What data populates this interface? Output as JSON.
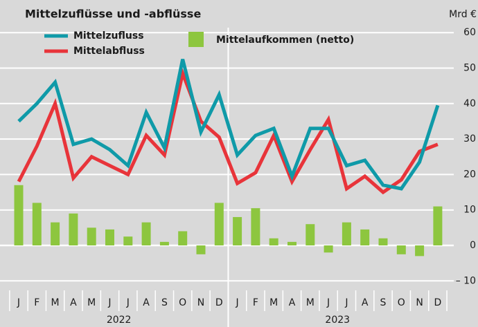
{
  "chart_data": {
    "type": "combo",
    "title": "Mittelzuflüsse und -abflüsse",
    "y_unit": "Mrd €",
    "categories": [
      "J",
      "F",
      "M",
      "A",
      "M",
      "J",
      "J",
      "A",
      "S",
      "O",
      "N",
      "D",
      "J",
      "F",
      "M",
      "A",
      "M",
      "J",
      "J",
      "A",
      "S",
      "O",
      "N",
      "D"
    ],
    "years": [
      "2022",
      "2023"
    ],
    "series": [
      {
        "name": "Mittelzufluss",
        "kind": "line",
        "color": "#0f9aa8",
        "values": [
          35,
          40,
          46,
          28.5,
          30,
          27,
          22.5,
          37.5,
          27.5,
          52.5,
          32,
          42.5,
          25.5,
          31,
          33,
          19.5,
          33,
          33,
          22.5,
          24,
          17,
          16,
          23.5,
          39.5
        ]
      },
      {
        "name": "Mittelabfluss",
        "kind": "line",
        "color": "#e8343a",
        "values": [
          18,
          28,
          40,
          19,
          25,
          22.5,
          20,
          31,
          25.5,
          48.5,
          35,
          30.5,
          17.5,
          20.5,
          31,
          18,
          27,
          35.5,
          16,
          19.5,
          15,
          18.5,
          26.5,
          28.5
        ]
      },
      {
        "name": "Mittelaufkommen (netto)",
        "kind": "bar",
        "color": "#8dc63f",
        "values": [
          17,
          12,
          6.5,
          9,
          5,
          4.5,
          2.5,
          6.5,
          1,
          4,
          -2.5,
          12,
          8,
          10.5,
          2,
          1,
          6,
          -2,
          6.5,
          4.5,
          2,
          -2.5,
          -3,
          11
        ]
      }
    ],
    "ylim": [
      -12,
      62
    ],
    "yticks": [
      {
        "value": -10,
        "label": "– 10"
      },
      0,
      10,
      20,
      30,
      40,
      50,
      60
    ],
    "grid": true
  }
}
